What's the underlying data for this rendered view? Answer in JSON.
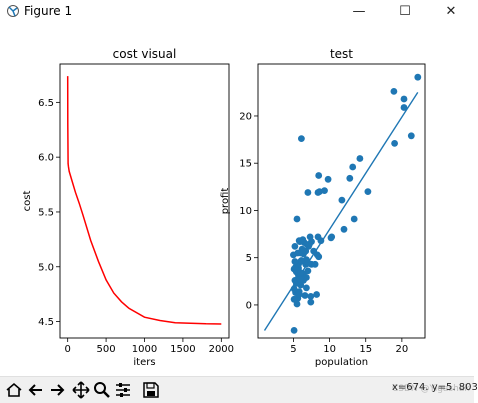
{
  "window": {
    "title": "Figure 1",
    "minimize_glyph": "—",
    "maximize_glyph": "☐",
    "close_glyph": "✕"
  },
  "toolbar": {
    "icons": [
      "home-icon",
      "back-arrow-icon",
      "forward-arrow-icon",
      "pan-icon",
      "zoom-icon",
      "configure-subplots-icon",
      "save-icon"
    ],
    "coords_text": "x=674.  y=5.  803",
    "watermark": "CSDN @Yigashak"
  },
  "chart_data": [
    {
      "type": "line",
      "title": "cost visual",
      "xlabel": "iters",
      "ylabel": "cost",
      "xlim": [
        -100,
        2100
      ],
      "ylim": [
        4.35,
        6.85
      ],
      "xticks": [
        0,
        500,
        1000,
        1500,
        2000
      ],
      "xtick_labels": [
        "0",
        "500",
        "1000",
        "1500",
        "2000"
      ],
      "yticks": [
        4.5,
        5.0,
        5.5,
        6.0,
        6.5
      ],
      "ytick_labels": [
        "4.5",
        "5.0",
        "5.5",
        "6.0",
        "6.5"
      ],
      "grid": false,
      "series": [
        {
          "color": "#ff0000",
          "x": [
            0,
            1,
            5,
            10,
            20,
            50,
            100,
            150,
            200,
            300,
            400,
            500,
            600,
            700,
            800,
            1000,
            1200,
            1400,
            1600,
            1800,
            2000
          ],
          "y": [
            6.74,
            6.3,
            5.94,
            5.91,
            5.87,
            5.8,
            5.68,
            5.58,
            5.47,
            5.24,
            5.05,
            4.88,
            4.76,
            4.68,
            4.62,
            4.54,
            4.51,
            4.49,
            4.485,
            4.48,
            4.478
          ]
        }
      ]
    },
    {
      "type": "scatter",
      "title": "test",
      "xlabel": "population",
      "ylabel": "profit",
      "xlim": [
        0.1,
        23.2
      ],
      "ylim": [
        -3.5,
        25.5
      ],
      "xticks": [
        5,
        10,
        15,
        20
      ],
      "xtick_labels": [
        "5",
        "10",
        "15",
        "20"
      ],
      "yticks": [
        0,
        5,
        10,
        15,
        20
      ],
      "ytick_labels": [
        "0",
        "5",
        "10",
        "15",
        "20"
      ],
      "grid": false,
      "points_color": "#1f77b4",
      "points": [
        [
          6.1,
          17.6
        ],
        [
          5.5,
          9.1
        ],
        [
          8.5,
          13.7
        ],
        [
          7.0,
          11.9
        ],
        [
          5.8,
          6.8
        ],
        [
          8.4,
          11.9
        ],
        [
          7.5,
          4.3
        ],
        [
          8.6,
          12.0
        ],
        [
          6.5,
          6.6
        ],
        [
          5.1,
          3.8
        ],
        [
          5.7,
          3.3
        ],
        [
          14.2,
          15.5
        ],
        [
          5.7,
          3.1
        ],
        [
          8.4,
          7.2
        ],
        [
          5.6,
          0.7
        ],
        [
          5.4,
          3.5
        ],
        [
          6.4,
          5.4
        ],
        [
          5.1,
          0.6
        ],
        [
          5.7,
          3.9
        ],
        [
          6.4,
          3.3
        ],
        [
          5.2,
          2.6
        ],
        [
          5.1,
          -2.7
        ],
        [
          6.0,
          2.1
        ],
        [
          5.5,
          2.3
        ],
        [
          5.4,
          2.6
        ],
        [
          6.0,
          3.4
        ],
        [
          5.3,
          4.0
        ],
        [
          6.2,
          5.9
        ],
        [
          5.3,
          1.3
        ],
        [
          5.2,
          6.2
        ],
        [
          5.7,
          4.3
        ],
        [
          6.6,
          1.0
        ],
        [
          5.8,
          1.4
        ],
        [
          6.8,
          2.9
        ],
        [
          7.8,
          5.7
        ],
        [
          6.7,
          4.3
        ],
        [
          5.4,
          2.3
        ],
        [
          6.0,
          4.6
        ],
        [
          5.8,
          1.1
        ],
        [
          5.9,
          2.8
        ],
        [
          5.5,
          0.1
        ],
        [
          6.8,
          1.8
        ],
        [
          7.3,
          7.2
        ],
        [
          6.9,
          6.4
        ],
        [
          8.3,
          5.3
        ],
        [
          6.7,
          5.7
        ],
        [
          7.1,
          4.4
        ],
        [
          7.5,
          6.7
        ],
        [
          9.3,
          12.1
        ],
        [
          9.8,
          13.3
        ],
        [
          10.2,
          7.1
        ],
        [
          11.7,
          11.1
        ],
        [
          12.8,
          13.4
        ],
        [
          13.2,
          14.6
        ],
        [
          13.4,
          9.1
        ],
        [
          15.3,
          12.0
        ],
        [
          18.9,
          22.6
        ],
        [
          20.3,
          21.8
        ],
        [
          20.3,
          20.9
        ],
        [
          21.3,
          17.9
        ],
        [
          22.2,
          24.1
        ],
        [
          19.0,
          17.1
        ],
        [
          7.1,
          6.2
        ],
        [
          6.4,
          2.6
        ],
        [
          5.9,
          2.7
        ],
        [
          6.0,
          5.5
        ],
        [
          6.3,
          6.9
        ],
        [
          6.8,
          4.8
        ],
        [
          5.2,
          4.6
        ],
        [
          8.0,
          4.3
        ],
        [
          7.2,
          6.4
        ],
        [
          7.4,
          0.3
        ],
        [
          8.5,
          5.1
        ],
        [
          6.1,
          4.7
        ],
        [
          10.3,
          7.2
        ],
        [
          12.0,
          8.0
        ],
        [
          5.9,
          6.7
        ],
        [
          7.4,
          0.9
        ],
        [
          6.3,
          5.8
        ],
        [
          8.8,
          6.8
        ],
        [
          5.0,
          5.3
        ],
        [
          5.6,
          5.5
        ],
        [
          7.0,
          3.6
        ],
        [
          8.2,
          1.1
        ],
        [
          5.1,
          1.7
        ]
      ],
      "fit_line": {
        "color": "#1f77b4",
        "x": [
          1.0,
          22.2
        ],
        "y": [
          -2.7,
          22.5
        ]
      }
    }
  ]
}
